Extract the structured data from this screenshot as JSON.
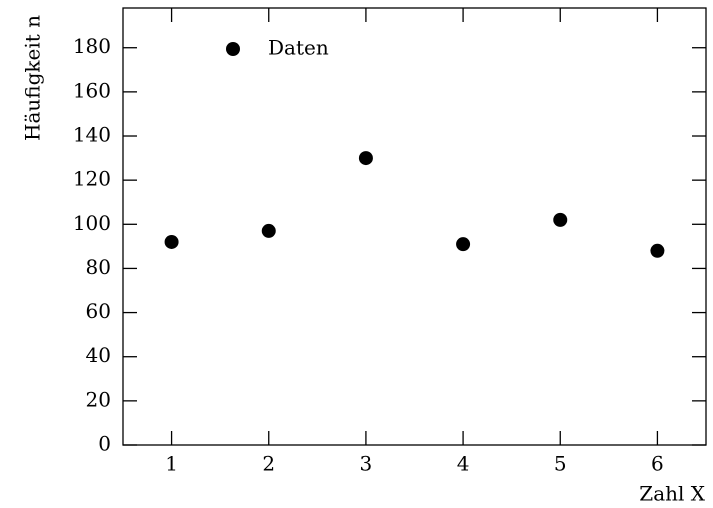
{
  "chart_data": {
    "type": "scatter",
    "x_label": "Zahl X",
    "y_label": "Häufigkeit n",
    "x": [
      1,
      2,
      3,
      4,
      5,
      6
    ],
    "series": [
      {
        "name": "Daten",
        "color": "#000000",
        "values": [
          92,
          97,
          130,
          91,
          102,
          88
        ]
      }
    ],
    "xlim": [
      0.5,
      6.5
    ],
    "xticks": [
      1,
      2,
      3,
      4,
      5,
      6
    ],
    "ylim": [
      0,
      198
    ],
    "yticks": [
      0,
      20,
      40,
      60,
      80,
      100,
      120,
      140,
      160,
      180
    ],
    "grid": false,
    "legend": "upper-left"
  }
}
